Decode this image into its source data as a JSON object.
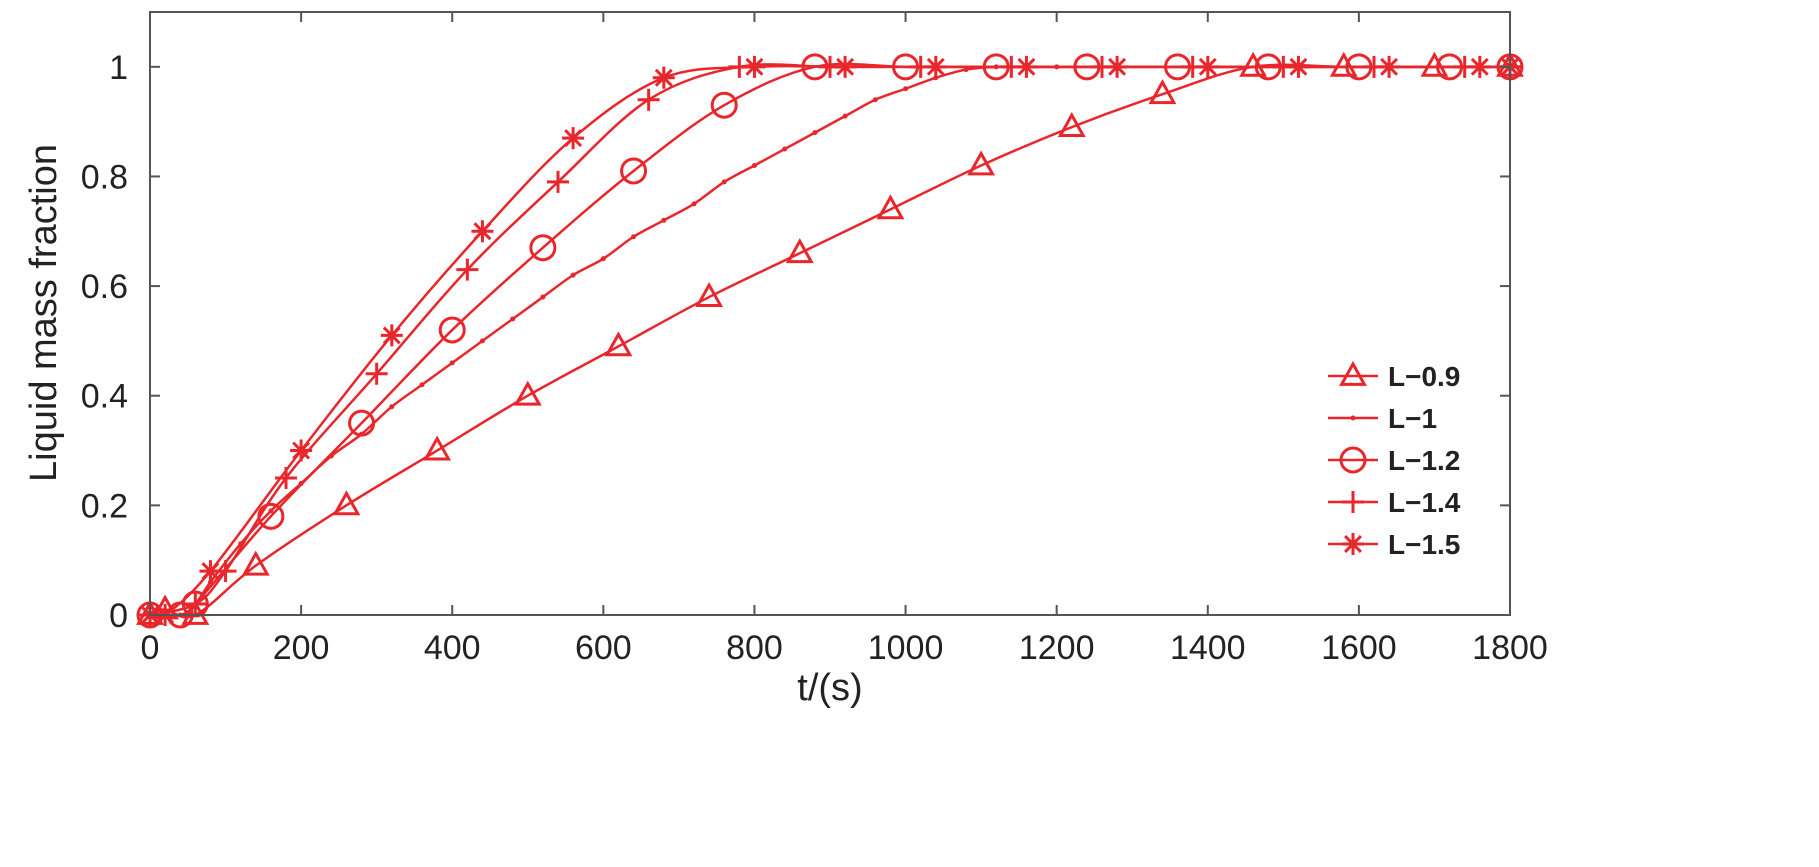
{
  "chart_data": {
    "type": "line",
    "title": "",
    "xlabel": "t/(s)",
    "ylabel": "Liquid mass fraction",
    "xlim": [
      0,
      1800
    ],
    "ylim": [
      0,
      1.1
    ],
    "xticks": [
      0,
      200,
      400,
      600,
      800,
      1000,
      1200,
      1400,
      1600,
      1800
    ],
    "xtick_labels": [
      "0",
      "200",
      "400",
      "600",
      "800",
      "1000",
      "1200",
      "1400",
      "1600",
      "1800"
    ],
    "yticks": [
      0,
      0.2,
      0.4,
      0.6,
      0.8,
      1
    ],
    "ytick_labels": [
      "0",
      "0.2",
      "0.4",
      "0.6",
      "0.8",
      "1"
    ],
    "grid": false,
    "legend_position": "bottom-right",
    "color": "#e8262b",
    "series": [
      {
        "name": "L−0.9",
        "marker": "triangle",
        "x": [
          0,
          20,
          60,
          140,
          260,
          380,
          500,
          620,
          740,
          860,
          980,
          1100,
          1220,
          1340,
          1460,
          1580,
          1700,
          1800
        ],
        "y": [
          0,
          0.01,
          0,
          0.09,
          0.2,
          0.3,
          0.4,
          0.49,
          0.58,
          0.66,
          0.74,
          0.82,
          0.89,
          0.95,
          1.0,
          1.0,
          1.0,
          1.0
        ]
      },
      {
        "name": "L−1",
        "marker": "dot",
        "x": [
          0,
          40,
          60,
          80,
          120,
          160,
          200,
          240,
          280,
          320,
          360,
          400,
          440,
          480,
          520,
          560,
          600,
          640,
          680,
          720,
          760,
          800,
          840,
          880,
          920,
          960,
          1000,
          1040,
          1080,
          1120,
          1160,
          1200,
          1280,
          1400,
          1520,
          1640,
          1800
        ],
        "y": [
          0,
          0,
          0.02,
          0.06,
          0.13,
          0.19,
          0.24,
          0.29,
          0.33,
          0.38,
          0.42,
          0.46,
          0.5,
          0.54,
          0.58,
          0.62,
          0.65,
          0.69,
          0.72,
          0.75,
          0.79,
          0.82,
          0.85,
          0.88,
          0.91,
          0.94,
          0.96,
          0.98,
          0.995,
          1.0,
          1.0,
          1.0,
          1.0,
          1.0,
          1.0,
          1.0,
          1.0
        ]
      },
      {
        "name": "L−1.2",
        "marker": "circle",
        "x": [
          0,
          40,
          60,
          160,
          280,
          400,
          520,
          640,
          760,
          880,
          1000,
          1120,
          1240,
          1360,
          1480,
          1600,
          1720,
          1800
        ],
        "y": [
          0,
          0,
          0.02,
          0.18,
          0.35,
          0.52,
          0.67,
          0.81,
          0.93,
          1.0,
          1.0,
          1.0,
          1.0,
          1.0,
          1.0,
          1.0,
          1.0,
          1.0
        ]
      },
      {
        "name": "L−1.4",
        "marker": "plus",
        "x": [
          0,
          60,
          100,
          180,
          300,
          420,
          540,
          660,
          780,
          900,
          1020,
          1140,
          1260,
          1380,
          1500,
          1620,
          1740,
          1800
        ],
        "y": [
          0,
          0.02,
          0.08,
          0.25,
          0.44,
          0.63,
          0.79,
          0.94,
          1.0,
          1.0,
          1.0,
          1.0,
          1.0,
          1.0,
          1.0,
          1.0,
          1.0,
          1.0
        ]
      },
      {
        "name": "L−1.5",
        "marker": "star",
        "x": [
          0,
          20,
          80,
          200,
          320,
          440,
          560,
          680,
          800,
          920,
          1040,
          1160,
          1280,
          1400,
          1520,
          1640,
          1760,
          1800
        ],
        "y": [
          0,
          0,
          0.08,
          0.3,
          0.51,
          0.7,
          0.87,
          0.98,
          1.0,
          1.0,
          1.0,
          1.0,
          1.0,
          1.0,
          1.0,
          1.0,
          1.0,
          1.0
        ]
      }
    ]
  }
}
